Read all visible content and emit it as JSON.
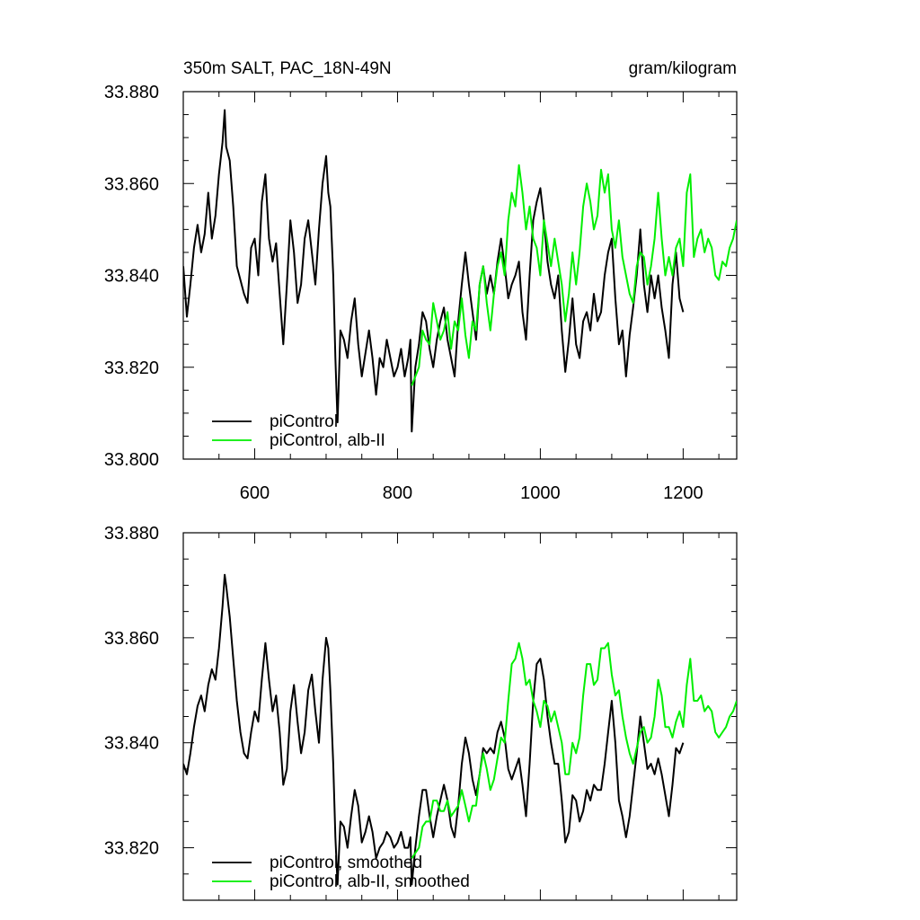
{
  "figure": {
    "title_left": "350m SALT, PAC_18N-49N",
    "title_right": "gram/kilogram"
  },
  "chart_data": [
    {
      "type": "line",
      "title": "350m SALT, PAC_18N-49N",
      "units": "gram/kilogram",
      "xlim": [
        500,
        1275
      ],
      "ylim": [
        33.8,
        33.88
      ],
      "x_ticks": [
        "600",
        "800",
        "1000",
        "1200"
      ],
      "y_ticks": [
        "33.800",
        "33.820",
        "33.840",
        "33.860",
        "33.880"
      ],
      "x_ticks_labeled": true,
      "legend": {
        "placement": "bottom-left"
      },
      "series": [
        {
          "name": "piControl",
          "color": "#000000",
          "x": [
            500,
            505,
            510,
            515,
            520,
            525,
            530,
            535,
            540,
            545,
            550,
            555,
            558,
            560,
            565,
            570,
            575,
            580,
            585,
            590,
            595,
            600,
            605,
            610,
            615,
            620,
            625,
            630,
            635,
            640,
            645,
            650,
            655,
            660,
            665,
            670,
            675,
            680,
            685,
            690,
            695,
            700,
            703,
            706,
            710,
            713,
            716,
            720,
            725,
            730,
            735,
            740,
            745,
            750,
            755,
            760,
            765,
            770,
            775,
            780,
            785,
            790,
            795,
            800,
            805,
            810,
            815,
            818,
            820,
            825,
            830,
            835,
            840,
            845,
            850,
            855,
            860,
            865,
            870,
            875,
            880,
            885,
            890,
            895,
            900,
            905,
            910,
            915,
            920,
            925,
            930,
            935,
            940,
            945,
            950,
            955,
            960,
            965,
            970,
            975,
            980,
            985,
            990,
            995,
            1000,
            1005,
            1010,
            1015,
            1020,
            1025,
            1030,
            1035,
            1040,
            1045,
            1050,
            1055,
            1060,
            1065,
            1070,
            1075,
            1080,
            1085,
            1090,
            1095,
            1100,
            1105,
            1110,
            1115,
            1120,
            1125,
            1130,
            1135,
            1140,
            1145,
            1150,
            1155,
            1160,
            1165,
            1170,
            1175,
            1180,
            1185,
            1190,
            1195,
            1200
          ],
          "values": [
            33.842,
            33.831,
            33.838,
            33.846,
            33.851,
            33.845,
            33.849,
            33.858,
            33.848,
            33.853,
            33.862,
            33.869,
            33.876,
            33.868,
            33.865,
            33.855,
            33.842,
            33.839,
            33.836,
            33.834,
            33.846,
            33.848,
            33.84,
            33.856,
            33.862,
            33.848,
            33.843,
            33.847,
            33.836,
            33.825,
            33.838,
            33.852,
            33.845,
            33.834,
            33.838,
            33.848,
            33.852,
            33.845,
            33.838,
            33.85,
            33.86,
            33.866,
            33.858,
            33.855,
            33.84,
            33.822,
            33.808,
            33.828,
            33.826,
            33.822,
            33.83,
            33.835,
            33.825,
            33.818,
            33.823,
            33.828,
            33.822,
            33.814,
            33.822,
            33.82,
            33.826,
            33.822,
            33.818,
            33.82,
            33.824,
            33.818,
            33.822,
            33.826,
            33.806,
            33.82,
            33.825,
            33.832,
            33.83,
            33.824,
            33.82,
            33.826,
            33.83,
            33.833,
            33.826,
            33.822,
            33.818,
            33.83,
            33.838,
            33.845,
            33.838,
            33.832,
            33.826,
            33.838,
            33.842,
            33.836,
            33.84,
            33.836,
            33.843,
            33.848,
            33.842,
            33.835,
            33.838,
            33.84,
            33.843,
            33.832,
            33.826,
            33.84,
            33.852,
            33.856,
            33.859,
            33.852,
            33.843,
            33.838,
            33.835,
            33.84,
            33.828,
            33.819,
            33.826,
            33.835,
            33.825,
            33.822,
            33.83,
            33.832,
            33.828,
            33.836,
            33.83,
            33.832,
            33.84,
            33.845,
            33.848,
            33.835,
            33.825,
            33.828,
            33.818,
            33.827,
            33.833,
            33.84,
            33.85,
            33.838,
            33.832,
            33.84,
            33.835,
            33.84,
            33.833,
            33.828,
            33.822,
            33.838,
            33.845,
            33.835,
            33.832
          ],
          "linewidth": 2
        },
        {
          "name": "piControl, alb-II",
          "color": "#00ee00",
          "x": [
            820,
            825,
            830,
            835,
            840,
            845,
            850,
            855,
            860,
            865,
            870,
            875,
            880,
            885,
            890,
            895,
            900,
            905,
            910,
            915,
            920,
            925,
            930,
            935,
            940,
            945,
            950,
            955,
            960,
            965,
            970,
            975,
            980,
            985,
            990,
            995,
            1000,
            1005,
            1010,
            1015,
            1020,
            1025,
            1030,
            1035,
            1040,
            1045,
            1050,
            1055,
            1060,
            1065,
            1070,
            1075,
            1080,
            1085,
            1090,
            1095,
            1100,
            1105,
            1110,
            1115,
            1120,
            1125,
            1130,
            1135,
            1140,
            1145,
            1150,
            1155,
            1160,
            1165,
            1170,
            1175,
            1180,
            1185,
            1190,
            1195,
            1200,
            1205,
            1210,
            1215,
            1220,
            1225,
            1230,
            1235,
            1240,
            1245,
            1250,
            1255,
            1260,
            1265,
            1270,
            1275
          ],
          "values": [
            33.816,
            33.818,
            33.82,
            33.828,
            33.826,
            33.825,
            33.834,
            33.83,
            33.826,
            33.828,
            33.832,
            33.824,
            33.83,
            33.828,
            33.835,
            33.827,
            33.822,
            33.83,
            33.828,
            33.838,
            33.842,
            33.834,
            33.828,
            33.836,
            33.842,
            33.845,
            33.84,
            33.852,
            33.858,
            33.855,
            33.864,
            33.858,
            33.85,
            33.855,
            33.848,
            33.846,
            33.84,
            33.852,
            33.847,
            33.842,
            33.848,
            33.843,
            33.838,
            33.83,
            33.836,
            33.845,
            33.838,
            33.845,
            33.855,
            33.86,
            33.856,
            33.85,
            33.853,
            33.863,
            33.858,
            33.862,
            33.85,
            33.846,
            33.852,
            33.844,
            33.84,
            33.836,
            33.834,
            33.842,
            33.845,
            33.844,
            33.838,
            33.842,
            33.848,
            33.858,
            33.848,
            33.84,
            33.844,
            33.84,
            33.846,
            33.848,
            33.842,
            33.858,
            33.862,
            33.844,
            33.848,
            33.85,
            33.845,
            33.848,
            33.846,
            33.84,
            33.839,
            33.843,
            33.842,
            33.846,
            33.848,
            33.852
          ],
          "linewidth": 2
        }
      ]
    },
    {
      "type": "line",
      "xlim": [
        500,
        1275
      ],
      "ylim": [
        33.81,
        33.88
      ],
      "x_ticks": [
        "600",
        "800",
        "1000",
        "1200"
      ],
      "y_ticks": [
        "33.820",
        "33.840",
        "33.860",
        "33.880"
      ],
      "x_ticks_labeled": false,
      "legend": {
        "placement": "bottom-left"
      },
      "series": [
        {
          "name": "piControl, smoothed",
          "color": "#000000",
          "x": [
            500,
            505,
            510,
            515,
            520,
            525,
            530,
            535,
            540,
            545,
            550,
            555,
            558,
            560,
            565,
            570,
            575,
            580,
            585,
            590,
            595,
            600,
            605,
            610,
            615,
            620,
            625,
            630,
            635,
            640,
            645,
            650,
            655,
            660,
            665,
            670,
            675,
            680,
            685,
            690,
            695,
            700,
            703,
            706,
            710,
            713,
            716,
            720,
            725,
            730,
            735,
            740,
            745,
            750,
            755,
            760,
            765,
            770,
            775,
            780,
            785,
            790,
            795,
            800,
            805,
            810,
            815,
            818,
            820,
            825,
            830,
            835,
            840,
            845,
            850,
            855,
            860,
            865,
            870,
            875,
            880,
            885,
            890,
            895,
            900,
            905,
            910,
            915,
            920,
            925,
            930,
            935,
            940,
            945,
            950,
            955,
            960,
            965,
            970,
            975,
            980,
            985,
            990,
            995,
            1000,
            1005,
            1010,
            1015,
            1020,
            1025,
            1030,
            1035,
            1040,
            1045,
            1050,
            1055,
            1060,
            1065,
            1070,
            1075,
            1080,
            1085,
            1090,
            1095,
            1100,
            1105,
            1110,
            1115,
            1120,
            1125,
            1130,
            1135,
            1140,
            1145,
            1150,
            1155,
            1160,
            1165,
            1170,
            1175,
            1180,
            1185,
            1190,
            1195,
            1200
          ],
          "values": [
            33.836,
            33.834,
            33.838,
            33.843,
            33.847,
            33.849,
            33.846,
            33.851,
            33.854,
            33.852,
            33.858,
            33.866,
            33.872,
            33.87,
            33.864,
            33.856,
            33.848,
            33.842,
            33.838,
            33.837,
            33.842,
            33.846,
            33.844,
            33.852,
            33.859,
            33.852,
            33.846,
            33.849,
            33.842,
            33.832,
            33.835,
            33.846,
            33.851,
            33.844,
            33.838,
            33.842,
            33.85,
            33.853,
            33.846,
            33.84,
            33.852,
            33.86,
            33.858,
            33.85,
            33.836,
            33.822,
            33.813,
            33.825,
            33.824,
            33.82,
            33.826,
            33.831,
            33.828,
            33.821,
            33.823,
            33.826,
            33.823,
            33.818,
            33.82,
            33.821,
            33.823,
            33.822,
            33.82,
            33.821,
            33.823,
            33.82,
            33.82,
            33.822,
            33.813,
            33.82,
            33.826,
            33.831,
            33.831,
            33.826,
            33.822,
            33.826,
            33.829,
            33.832,
            33.829,
            33.824,
            33.822,
            33.828,
            33.836,
            33.841,
            33.838,
            33.833,
            33.83,
            33.834,
            33.839,
            33.838,
            33.839,
            33.838,
            33.842,
            33.844,
            33.841,
            33.835,
            33.833,
            33.835,
            33.837,
            33.832,
            33.826,
            33.836,
            33.848,
            33.855,
            33.856,
            33.852,
            33.845,
            33.84,
            33.836,
            33.836,
            33.829,
            33.821,
            33.823,
            33.83,
            33.829,
            33.825,
            33.827,
            33.831,
            33.829,
            33.832,
            33.831,
            33.831,
            33.836,
            33.842,
            33.848,
            33.84,
            33.829,
            33.826,
            33.822,
            33.826,
            33.832,
            33.838,
            33.845,
            33.84,
            33.835,
            33.836,
            33.834,
            33.837,
            33.834,
            33.83,
            33.826,
            33.832,
            33.839,
            33.838,
            33.84
          ],
          "linewidth": 2
        },
        {
          "name": "piControl, alb-II, smoothed",
          "color": "#00ee00",
          "x": [
            820,
            825,
            830,
            835,
            840,
            845,
            850,
            855,
            860,
            865,
            870,
            875,
            880,
            885,
            890,
            895,
            900,
            905,
            910,
            915,
            920,
            925,
            930,
            935,
            940,
            945,
            950,
            955,
            960,
            965,
            970,
            975,
            980,
            985,
            990,
            995,
            1000,
            1005,
            1010,
            1015,
            1020,
            1025,
            1030,
            1035,
            1040,
            1045,
            1050,
            1055,
            1060,
            1065,
            1070,
            1075,
            1080,
            1085,
            1090,
            1095,
            1100,
            1105,
            1110,
            1115,
            1120,
            1125,
            1130,
            1135,
            1140,
            1145,
            1150,
            1155,
            1160,
            1165,
            1170,
            1175,
            1180,
            1185,
            1190,
            1195,
            1200,
            1205,
            1210,
            1215,
            1220,
            1225,
            1230,
            1235,
            1240,
            1245,
            1250,
            1255,
            1260,
            1265,
            1270,
            1275
          ],
          "values": [
            33.818,
            33.819,
            33.82,
            33.824,
            33.825,
            33.825,
            33.829,
            33.829,
            33.827,
            33.827,
            33.829,
            33.826,
            33.827,
            33.828,
            33.831,
            33.828,
            33.825,
            33.828,
            33.828,
            33.834,
            33.838,
            33.835,
            33.831,
            33.833,
            33.837,
            33.841,
            33.84,
            33.848,
            33.855,
            33.856,
            33.859,
            33.856,
            33.851,
            33.852,
            33.848,
            33.846,
            33.843,
            33.848,
            33.847,
            33.844,
            33.846,
            33.843,
            33.84,
            33.834,
            33.834,
            33.84,
            33.838,
            33.841,
            33.849,
            33.855,
            33.855,
            33.851,
            33.852,
            33.858,
            33.858,
            33.859,
            33.853,
            33.849,
            33.85,
            33.845,
            33.841,
            33.838,
            33.836,
            33.839,
            33.842,
            33.843,
            33.84,
            33.841,
            33.845,
            33.852,
            33.849,
            33.843,
            33.843,
            33.841,
            33.844,
            33.846,
            33.843,
            33.851,
            33.856,
            33.848,
            33.848,
            33.849,
            33.846,
            33.847,
            33.846,
            33.842,
            33.841,
            33.842,
            33.843,
            33.845,
            33.846,
            33.848
          ],
          "linewidth": 2
        }
      ]
    }
  ]
}
